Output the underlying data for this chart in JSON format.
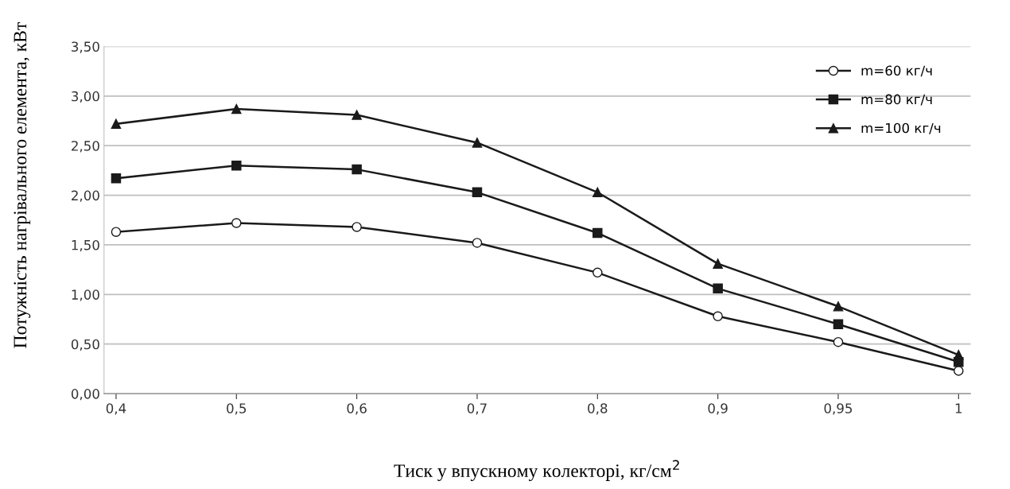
{
  "chart_data": {
    "type": "line",
    "xlabel": "Тиск у впускному колекторі, кг/см$^{2}$",
    "ylabel": "Потужність нагрівального елемента, кВт",
    "categories": [
      "0,4",
      "0,5",
      "0,6",
      "0,7",
      "0,8",
      "0,9",
      "0,95",
      "1"
    ],
    "series": [
      {
        "name": "m=60 кг/ч",
        "color": "#1a1a1a",
        "marker": "circle",
        "values": [
          1.63,
          1.72,
          1.68,
          1.52,
          1.22,
          0.78,
          0.52,
          0.23
        ]
      },
      {
        "name": "m=80 кг/ч",
        "color": "#1a1a1a",
        "marker": "square",
        "values": [
          2.17,
          2.3,
          2.26,
          2.03,
          1.62,
          1.06,
          0.7,
          0.32
        ]
      },
      {
        "name": "m=100 кг/ч",
        "color": "#1a1a1a",
        "marker": "triangle",
        "values": [
          2.72,
          2.87,
          2.81,
          2.53,
          2.03,
          1.31,
          0.88,
          0.39
        ]
      }
    ],
    "ylim": [
      0,
      3.5
    ],
    "yticks": [
      {
        "value": 0,
        "label": "0,00"
      },
      {
        "value": 0.5,
        "label": "0,50"
      },
      {
        "value": 1,
        "label": "1,00"
      },
      {
        "value": 1.5,
        "label": "1,50"
      },
      {
        "value": 2,
        "label": "2,00"
      },
      {
        "value": 2.5,
        "label": "2,50"
      },
      {
        "value": 3,
        "label": "3,00"
      },
      {
        "value": 3.5,
        "label": "3,50"
      }
    ],
    "grid": "y",
    "legend": "top right",
    "line_style": "solid"
  }
}
